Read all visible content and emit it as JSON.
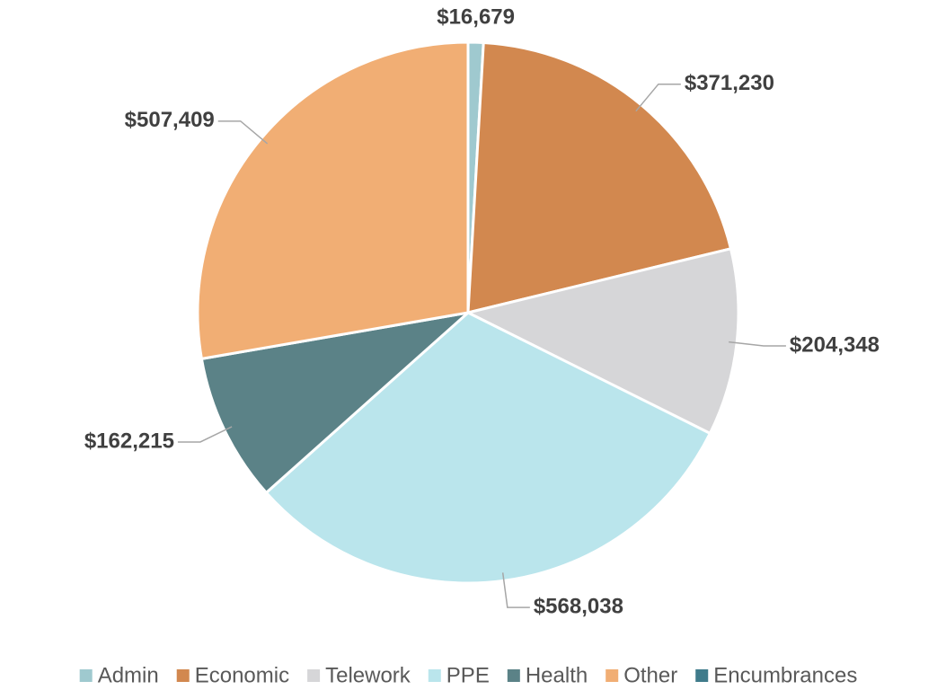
{
  "chart_data": {
    "type": "pie",
    "categories": [
      "Admin",
      "Economic",
      "Telework",
      "PPE",
      "Health",
      "Other",
      "Encumbrances"
    ],
    "values": [
      16679,
      371230,
      204348,
      568038,
      162215,
      507409,
      0
    ],
    "value_labels": [
      "$16,679",
      "$371,230",
      "$204,348",
      "$568,038",
      "$162,215",
      "$507,409",
      null
    ],
    "colors": [
      "#9fc9cf",
      "#d2884f",
      "#d6d6d8",
      "#bae5ec",
      "#5b8287",
      "#f1ae74",
      "#3f7b8b"
    ],
    "legend": "bottom"
  }
}
